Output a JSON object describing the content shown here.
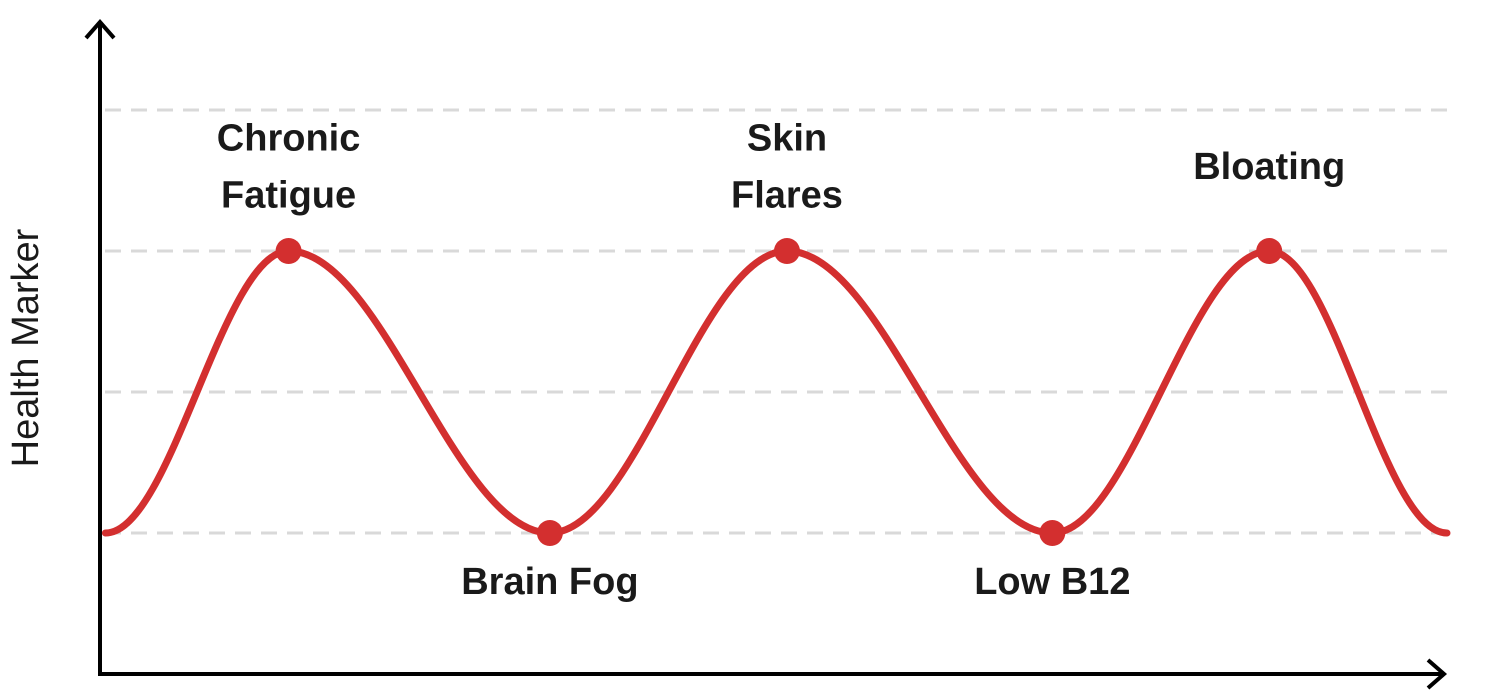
{
  "chart_data": {
    "type": "line",
    "y_label": "Health Marker",
    "x": [
      0.4,
      14,
      33.4,
      51,
      70.7,
      86.8,
      100
    ],
    "xlim": [
      0,
      100
    ],
    "ylim": [
      0,
      4.5
    ],
    "gridlines": [
      1,
      2,
      3,
      4
    ],
    "series": [
      {
        "color": "#d32f2f",
        "values": [
          1,
          3,
          1,
          3,
          1,
          3,
          1
        ],
        "labels": [
          null,
          [
            "Chronic",
            "Fatigue"
          ],
          [
            "Brain Fog"
          ],
          [
            "Skin",
            "Flares"
          ],
          [
            "Low B12"
          ],
          [
            "Bloating"
          ],
          null
        ]
      }
    ]
  }
}
